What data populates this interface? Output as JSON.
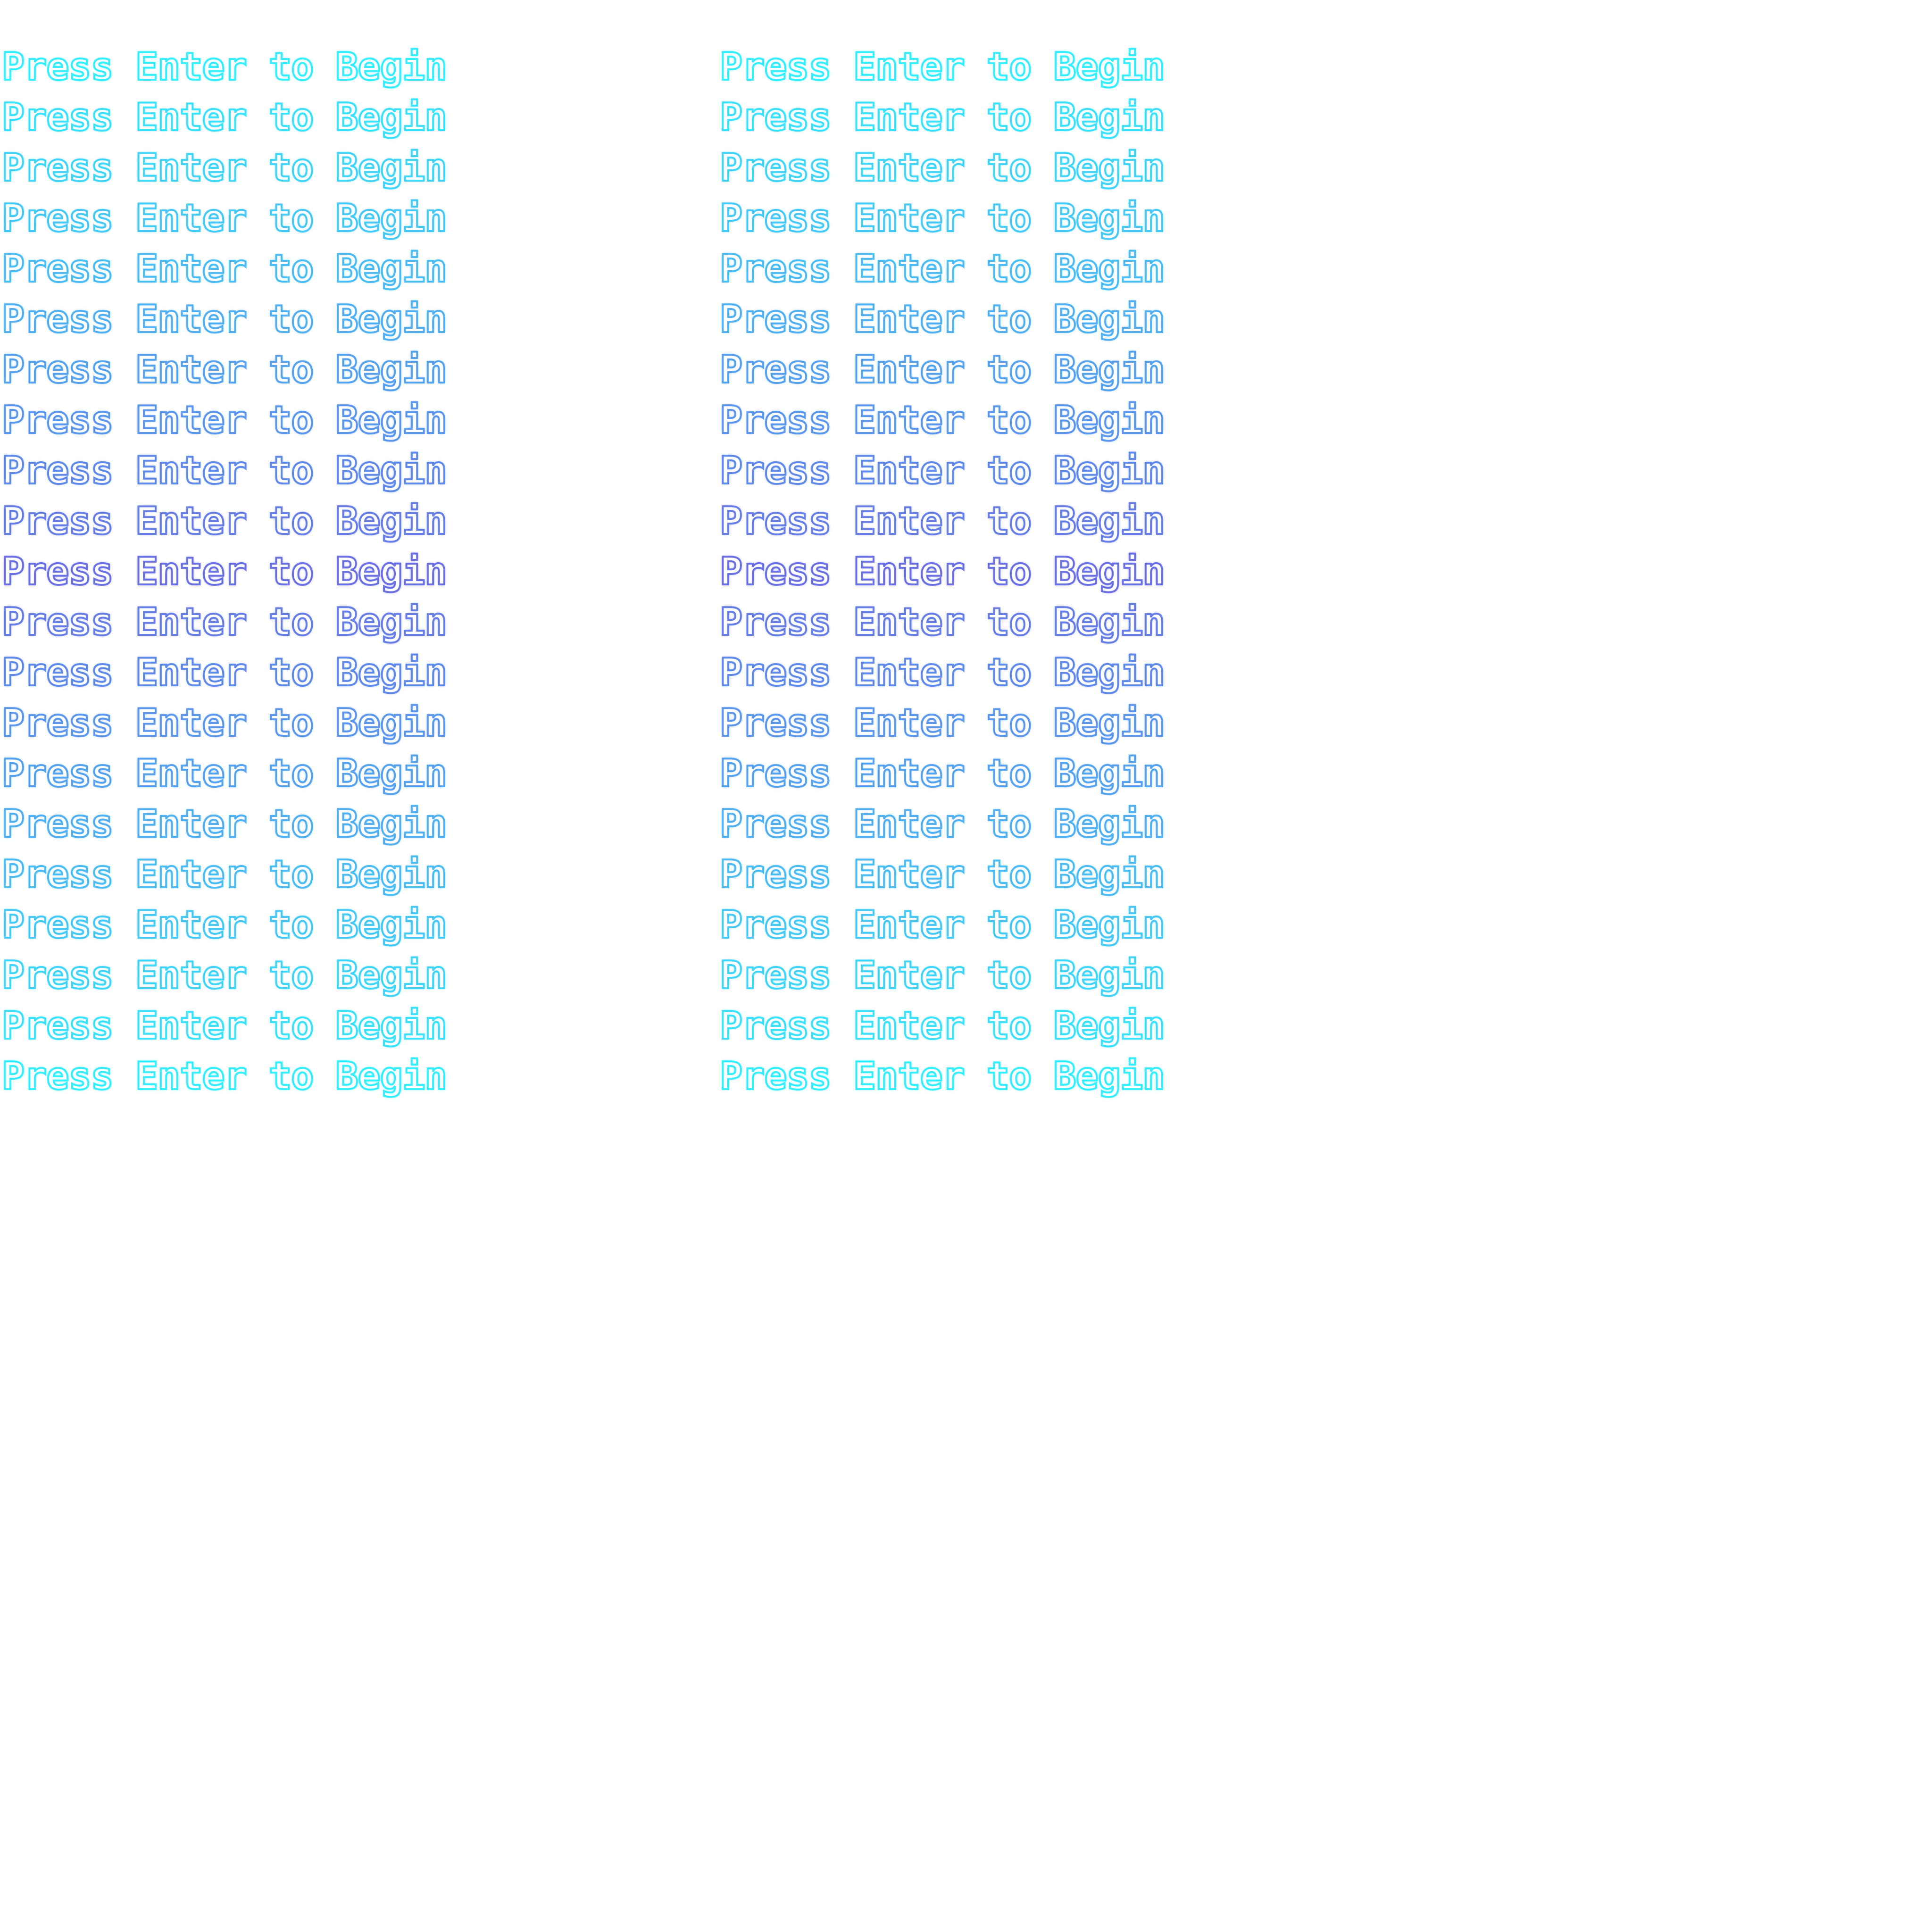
{
  "screen": {
    "prompt_text": "Press Enter to Begin",
    "columns": 2,
    "rows_per_column": 21,
    "colors": {
      "edge": "#33eeff",
      "center": "#6a70e2"
    }
  }
}
